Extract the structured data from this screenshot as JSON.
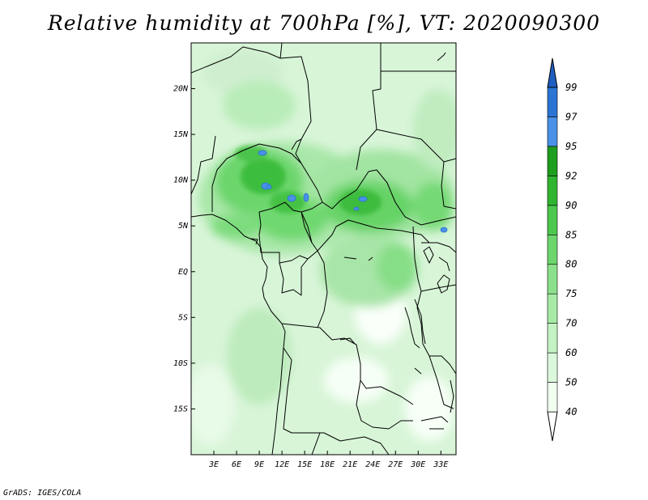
{
  "title": "Relative humidity at 700hPa [%], VT: 2020090300",
  "credit": "GrADS: IGES/COLA",
  "map": {
    "lon_range": [
      0,
      35
    ],
    "lat_range": [
      -20,
      25
    ],
    "lon_ticks": [
      {
        "value": 3,
        "label": "3E"
      },
      {
        "value": 6,
        "label": "6E"
      },
      {
        "value": 9,
        "label": "9E"
      },
      {
        "value": 12,
        "label": "12E"
      },
      {
        "value": 15,
        "label": "15E"
      },
      {
        "value": 18,
        "label": "18E"
      },
      {
        "value": 21,
        "label": "21E"
      },
      {
        "value": 24,
        "label": "24E"
      },
      {
        "value": 27,
        "label": "27E"
      },
      {
        "value": 30,
        "label": "30E"
      },
      {
        "value": 33,
        "label": "33E"
      }
    ],
    "lat_ticks": [
      {
        "value": 20,
        "label": "20N"
      },
      {
        "value": 15,
        "label": "15N"
      },
      {
        "value": 10,
        "label": "10N"
      },
      {
        "value": 5,
        "label": "5N"
      },
      {
        "value": 0,
        "label": "EQ"
      },
      {
        "value": -5,
        "label": "5S"
      },
      {
        "value": -10,
        "label": "10S"
      },
      {
        "value": -15,
        "label": "15S"
      }
    ]
  },
  "colorbar": {
    "levels": [
      "40",
      "50",
      "60",
      "70",
      "75",
      "80",
      "85",
      "90",
      "92",
      "95",
      "97",
      "99"
    ],
    "colors": [
      "#f0fff0",
      "#dcf8dc",
      "#c4f2c4",
      "#a6eaa6",
      "#8ce08c",
      "#6cd66c",
      "#4cc84c",
      "#2fb52f",
      "#1e9e1e",
      "#4a90e6",
      "#2a74d4",
      "#1e5ec0"
    ]
  }
}
